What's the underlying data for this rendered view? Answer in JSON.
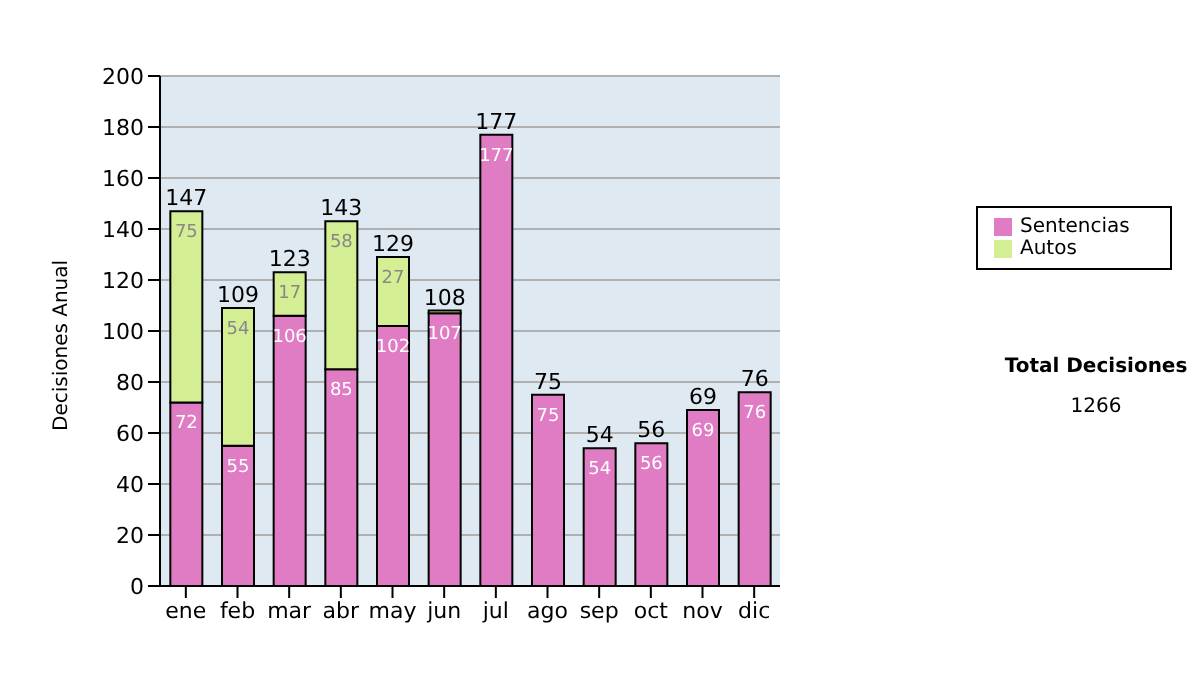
{
  "chart_data": {
    "type": "bar",
    "stacked": true,
    "ylabel": "Decisiones Anual",
    "categories": [
      "ene",
      "feb",
      "mar",
      "abr",
      "may",
      "jun",
      "jul",
      "ago",
      "sep",
      "oct",
      "nov",
      "dic"
    ],
    "series": [
      {
        "name": "Sentencias",
        "color": "#e07cc4",
        "values": [
          72,
          55,
          106,
          85,
          102,
          107,
          177,
          75,
          54,
          56,
          69,
          76
        ],
        "value_labels": [
          "72",
          "55",
          "106",
          "85",
          "102",
          "107",
          "177",
          "75",
          "54",
          "56",
          "69",
          "76"
        ]
      },
      {
        "name": "Autos",
        "color": "#d4ee94",
        "values": [
          75,
          54,
          17,
          58,
          27,
          1,
          0,
          0,
          0,
          0,
          0,
          0
        ],
        "value_labels": [
          "75",
          "54",
          "17",
          "58",
          "27",
          null,
          null,
          null,
          null,
          null,
          null,
          null
        ]
      }
    ],
    "totals": [
      "147",
      "109",
      "123",
      "143",
      "129",
      "108",
      "177",
      "75",
      "54",
      "56",
      "69",
      "76"
    ],
    "ylim": [
      0,
      200
    ],
    "yticks": [
      0,
      20,
      40,
      60,
      80,
      100,
      120,
      140,
      160,
      180,
      200
    ],
    "grid": "y",
    "legend": "right",
    "annotations": [
      "Total Decisiones",
      "1266"
    ]
  }
}
